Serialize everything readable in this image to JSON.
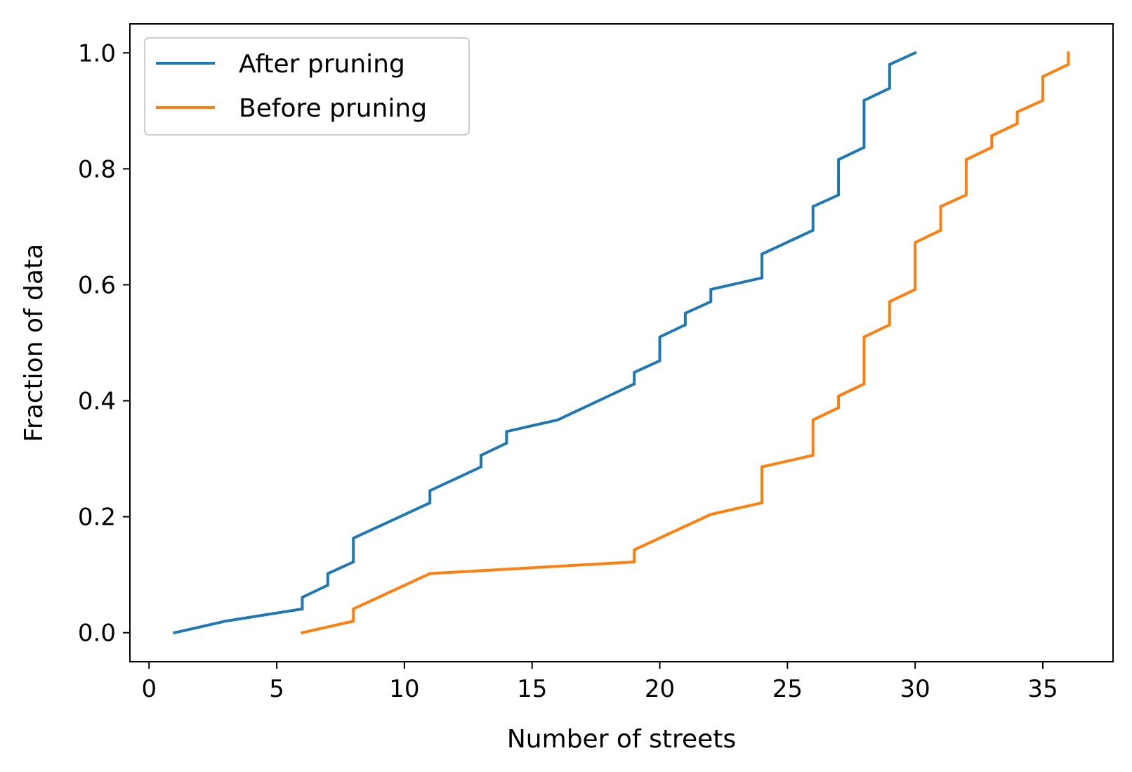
{
  "chart_data": {
    "type": "line",
    "title": "",
    "xlabel": "Number of streets",
    "ylabel": "Fraction of data",
    "xlim": [
      -0.75,
      37.75
    ],
    "ylim": [
      -0.05,
      1.05
    ],
    "xticks": [
      0,
      5,
      10,
      15,
      20,
      25,
      30,
      35
    ],
    "yticks": [
      0.0,
      0.2,
      0.4,
      0.6,
      0.8,
      1.0
    ],
    "xtick_labels": [
      "0",
      "5",
      "10",
      "15",
      "20",
      "25",
      "30",
      "35"
    ],
    "ytick_labels": [
      "0.0",
      "0.2",
      "0.4",
      "0.6",
      "0.8",
      "1.0"
    ],
    "grid": false,
    "legend_position": "top-left",
    "series": [
      {
        "name": "After pruning",
        "color": "#1f77b4",
        "points": [
          [
            1,
            0.0
          ],
          [
            3,
            0.02
          ],
          [
            6,
            0.041
          ],
          [
            6,
            0.061
          ],
          [
            7,
            0.082
          ],
          [
            7,
            0.102
          ],
          [
            8,
            0.122
          ],
          [
            8,
            0.163
          ],
          [
            11,
            0.224
          ],
          [
            11,
            0.245
          ],
          [
            13,
            0.286
          ],
          [
            13,
            0.306
          ],
          [
            14,
            0.327
          ],
          [
            14,
            0.347
          ],
          [
            16,
            0.367
          ],
          [
            19,
            0.429
          ],
          [
            19,
            0.449
          ],
          [
            20,
            0.469
          ],
          [
            20,
            0.51
          ],
          [
            21,
            0.531
          ],
          [
            21,
            0.551
          ],
          [
            22,
            0.571
          ],
          [
            22,
            0.592
          ],
          [
            24,
            0.612
          ],
          [
            24,
            0.653
          ],
          [
            26,
            0.694
          ],
          [
            26,
            0.735
          ],
          [
            27,
            0.755
          ],
          [
            27,
            0.816
          ],
          [
            28,
            0.837
          ],
          [
            28,
            0.918
          ],
          [
            29,
            0.939
          ],
          [
            29,
            0.98
          ],
          [
            30,
            1.0
          ]
        ]
      },
      {
        "name": "Before pruning",
        "color": "#ff7f0e",
        "points": [
          [
            6,
            0.0
          ],
          [
            8,
            0.02
          ],
          [
            8,
            0.041
          ],
          [
            11,
            0.102
          ],
          [
            19,
            0.122
          ],
          [
            19,
            0.143
          ],
          [
            22,
            0.204
          ],
          [
            24,
            0.224
          ],
          [
            24,
            0.286
          ],
          [
            26,
            0.306
          ],
          [
            26,
            0.367
          ],
          [
            27,
            0.388
          ],
          [
            27,
            0.408
          ],
          [
            28,
            0.429
          ],
          [
            28,
            0.51
          ],
          [
            29,
            0.531
          ],
          [
            29,
            0.571
          ],
          [
            30,
            0.592
          ],
          [
            30,
            0.673
          ],
          [
            31,
            0.694
          ],
          [
            31,
            0.735
          ],
          [
            32,
            0.755
          ],
          [
            32,
            0.816
          ],
          [
            33,
            0.837
          ],
          [
            33,
            0.857
          ],
          [
            34,
            0.878
          ],
          [
            34,
            0.898
          ],
          [
            35,
            0.918
          ],
          [
            35,
            0.959
          ],
          [
            36,
            0.98
          ],
          [
            36,
            1.0
          ]
        ]
      }
    ]
  }
}
